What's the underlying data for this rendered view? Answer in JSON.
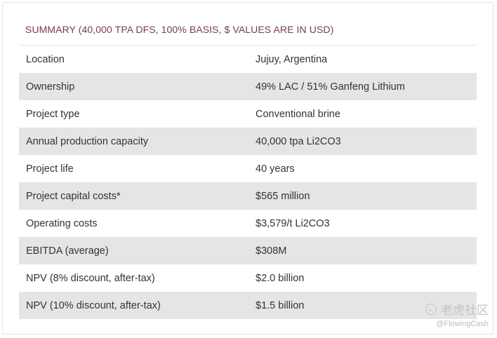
{
  "summary": {
    "title": "SUMMARY (40,000 TPA DFS, 100% BASIS, $ VALUES ARE IN USD)",
    "rows": [
      {
        "label": "Location",
        "value": "Jujuy, Argentina"
      },
      {
        "label": "Ownership",
        "value": "49% LAC / 51% Ganfeng Lithium"
      },
      {
        "label": "Project type",
        "value": "Conventional brine"
      },
      {
        "label": "Annual production capacity",
        "value": "40,000 tpa Li2CO3"
      },
      {
        "label": "Project life",
        "value": "40 years"
      },
      {
        "label": "Project capital costs*",
        "value": "$565 million"
      },
      {
        "label": "Operating costs",
        "value": "$3,579/t Li2CO3"
      },
      {
        "label": "EBITDA (average)",
        "value": "$308M"
      },
      {
        "label": "NPV (8% discount, after-tax)",
        "value": "$2.0 billion"
      },
      {
        "label": "NPV (10% discount, after-tax)",
        "value": "$1.5 billion"
      }
    ],
    "title_color": "#7a3b50",
    "shade_color": "#e5e5e5"
  },
  "watermark": {
    "brand": "老虎社区",
    "handle": "@FlowingCash",
    "logo_icon": "tiger-logo-icon"
  }
}
